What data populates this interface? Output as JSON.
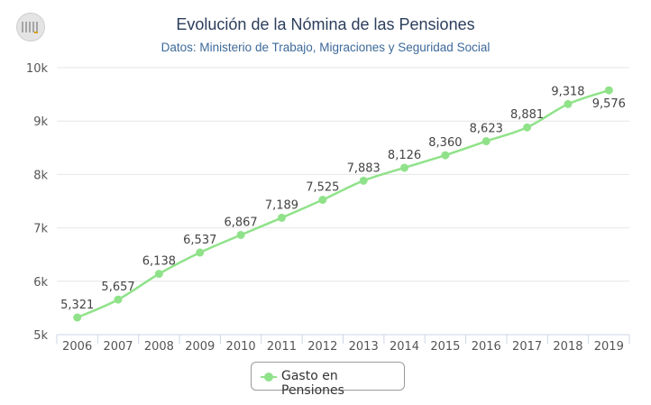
{
  "chart_data": {
    "type": "line",
    "title": "Evolución de la Nómina de las Pensiones",
    "subtitle": "Datos: Ministerio de Trabajo, Migraciones y Seguridad Social",
    "categories": [
      "2006",
      "2007",
      "2008",
      "2009",
      "2010",
      "2011",
      "2012",
      "2013",
      "2014",
      "2015",
      "2016",
      "2017",
      "2018",
      "2019"
    ],
    "series": [
      {
        "name": "Gasto en Pensiones",
        "values": [
          5321,
          5657,
          6138,
          6537,
          6867,
          7189,
          7525,
          7883,
          8126,
          8360,
          8623,
          8881,
          9318,
          9576
        ],
        "labels": [
          "5,321",
          "5,657",
          "6,138",
          "6,537",
          "6,867",
          "7,189",
          "7,525",
          "7,883",
          "8,126",
          "8,360",
          "8,623",
          "8,881",
          "9,318",
          "9,576"
        ],
        "color": "#90e28a"
      }
    ],
    "ylim": [
      5000,
      10000
    ],
    "yticks": [
      5000,
      6000,
      7000,
      8000,
      9000,
      10000
    ],
    "ytick_labels": [
      "5k",
      "6k",
      "7k",
      "8k",
      "9k",
      "10k"
    ],
    "grid": true,
    "legend": "bottom-center"
  },
  "colors": {
    "title": "#2b3e5c",
    "subtitle": "#3d6a9a",
    "grid": "#e6e6e6",
    "axis_text": "#555555",
    "label_text": "#444444"
  },
  "icons": {
    "logo": "logo-badge-icon"
  }
}
